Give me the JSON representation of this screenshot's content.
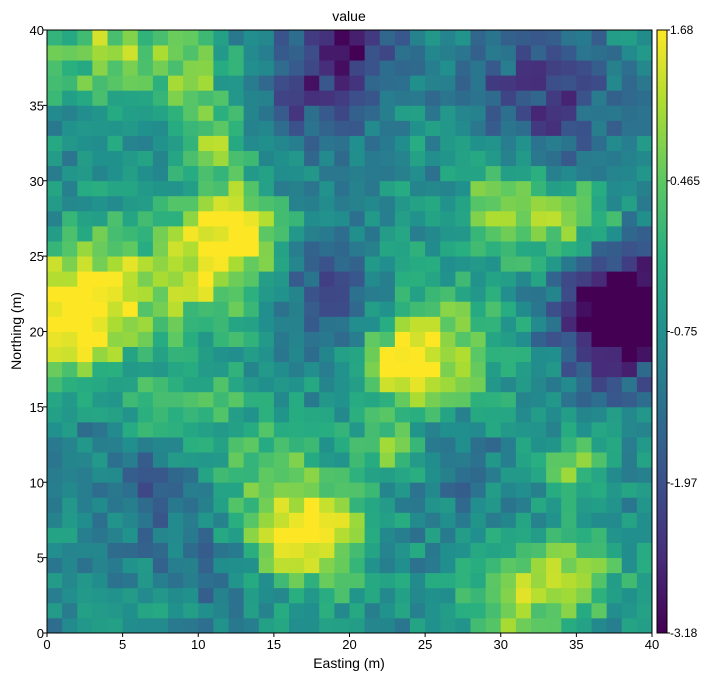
{
  "chart_data": {
    "type": "heatmap",
    "title": "value",
    "xlabel": "Easting (m)",
    "ylabel": "Northing (m)",
    "xlim": [
      0,
      40
    ],
    "ylim": [
      0,
      40
    ],
    "x_ticks": [
      0,
      5,
      10,
      15,
      20,
      25,
      30,
      35,
      40
    ],
    "y_ticks": [
      0,
      5,
      10,
      15,
      20,
      25,
      30,
      35,
      40
    ],
    "cell_size": 1,
    "grid": false,
    "colormap": "viridis",
    "colorbar": {
      "min": -3.18,
      "max": 1.68,
      "ticks": [
        1.68,
        0.465,
        -0.75,
        -1.97,
        -3.18
      ],
      "tick_labels": [
        "1.68",
        "0.465",
        "-0.75",
        "-1.97",
        "-3.18"
      ]
    },
    "background_value": -0.75,
    "noise_amplitude": 0.55,
    "features": [
      {
        "x": 1.5,
        "y": 20.5,
        "amplitude": 2.2,
        "radius": 2.5
      },
      {
        "x": 3.0,
        "y": 23.0,
        "amplitude": 1.6,
        "radius": 2.8
      },
      {
        "x": 12.5,
        "y": 27.0,
        "amplitude": 2.1,
        "radius": 2.0
      },
      {
        "x": 10.0,
        "y": 24.0,
        "amplitude": 1.7,
        "radius": 3.0
      },
      {
        "x": 11.0,
        "y": 32.5,
        "amplitude": 1.4,
        "radius": 1.8
      },
      {
        "x": 4.0,
        "y": 39.0,
        "amplitude": 1.5,
        "radius": 3.0
      },
      {
        "x": 9.5,
        "y": 37.0,
        "amplitude": 1.3,
        "radius": 2.0
      },
      {
        "x": 26.0,
        "y": 18.0,
        "amplitude": 1.9,
        "radius": 3.5
      },
      {
        "x": 23.5,
        "y": 18.0,
        "amplitude": 1.6,
        "radius": 1.5
      },
      {
        "x": 23.0,
        "y": 12.0,
        "amplitude": 1.5,
        "radius": 1.5
      },
      {
        "x": 34.5,
        "y": 27.5,
        "amplitude": 1.6,
        "radius": 2.5
      },
      {
        "x": 30.0,
        "y": 28.5,
        "amplitude": 1.5,
        "radius": 2.0
      },
      {
        "x": 16.0,
        "y": 6.0,
        "amplitude": 2.0,
        "radius": 2.5
      },
      {
        "x": 19.0,
        "y": 7.0,
        "amplitude": 1.4,
        "radius": 2.0
      },
      {
        "x": 31.0,
        "y": 2.0,
        "amplitude": 1.7,
        "radius": 2.5
      },
      {
        "x": 35.5,
        "y": 4.0,
        "amplitude": 1.5,
        "radius": 2.0
      },
      {
        "x": 35.0,
        "y": 11.0,
        "amplitude": 1.4,
        "radius": 1.5
      },
      {
        "x": 14.0,
        "y": 11.0,
        "amplitude": 1.0,
        "radius": 3.0
      },
      {
        "x": 8.5,
        "y": 14.5,
        "amplitude": 1.0,
        "radius": 2.5
      },
      {
        "x": 37.5,
        "y": 20.5,
        "amplitude": -2.4,
        "radius": 3.0
      },
      {
        "x": 38.5,
        "y": 22.5,
        "amplitude": -1.6,
        "radius": 2.5
      },
      {
        "x": 19.5,
        "y": 39.0,
        "amplitude": -1.8,
        "radius": 2.5
      },
      {
        "x": 19.0,
        "y": 22.0,
        "amplitude": -1.4,
        "radius": 2.5
      },
      {
        "x": 27.0,
        "y": 12.5,
        "amplitude": -1.0,
        "radius": 3.0
      },
      {
        "x": 7.0,
        "y": 10.0,
        "amplitude": -1.0,
        "radius": 3.0
      },
      {
        "x": 32.0,
        "y": 37.0,
        "amplitude": -1.1,
        "radius": 3.5
      },
      {
        "x": 17.0,
        "y": 35.0,
        "amplitude": -0.9,
        "radius": 3.0
      },
      {
        "x": 12.0,
        "y": 4.0,
        "amplitude": -0.9,
        "radius": 2.5
      },
      {
        "x": 35.0,
        "y": 33.0,
        "amplitude": -0.8,
        "radius": 3.0
      }
    ]
  }
}
